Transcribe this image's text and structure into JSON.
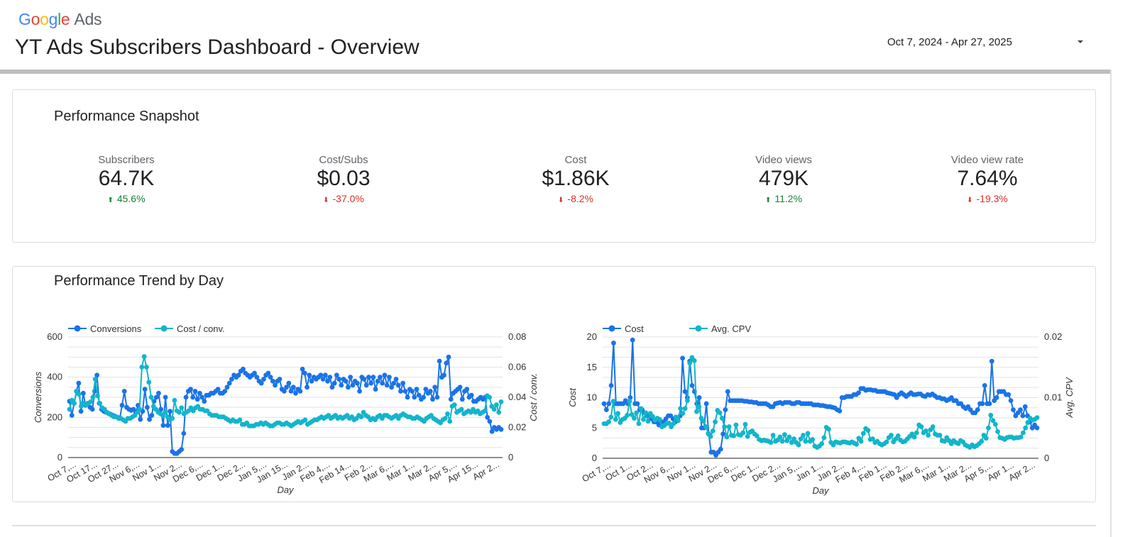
{
  "header": {
    "logo": {
      "google": "Google",
      "ads": "Ads"
    },
    "title": "YT Ads Subscribers Dashboard - Overview",
    "date_range": "Oct 7, 2024 - Apr 27, 2025"
  },
  "snapshot": {
    "title": "Performance Snapshot",
    "kpis": [
      {
        "label": "Subscribers",
        "value": "64.7K",
        "delta": "45.6%",
        "direction": "up"
      },
      {
        "label": "Cost/Subs",
        "value": "$0.03",
        "delta": "-37.0%",
        "direction": "down"
      },
      {
        "label": "Cost",
        "value": "$1.86K",
        "delta": "-8.2%",
        "direction": "down"
      },
      {
        "label": "Video views",
        "value": "479K",
        "delta": "11.2%",
        "direction": "up"
      },
      {
        "label": "Video view rate",
        "value": "7.64%",
        "delta": "-19.3%",
        "direction": "down"
      }
    ]
  },
  "trend": {
    "title": "Performance Trend by Day"
  },
  "colors": {
    "series1": "#1a73e8",
    "series2": "#12b5cb",
    "up": "#188038",
    "down": "#d93025"
  },
  "chart_data": [
    {
      "type": "line",
      "xlabel": "Day",
      "ylabel": "Conversions",
      "y2label": "Cost / conv.",
      "ylim": [
        0,
        600
      ],
      "y2lim": [
        0,
        0.08
      ],
      "yticks": [
        "0",
        "200",
        "400",
        "600"
      ],
      "y2ticks": [
        "0",
        "0.02",
        "0.04",
        "0.06",
        "0.08"
      ],
      "legend_position": "top-left",
      "grid": true,
      "x_tick_labels": [
        "Oct 7,...",
        "Oct 17...",
        "Oct 27...",
        "Nov 6,...",
        "Nov 1...",
        "Nov 2...",
        "Dec 6,...",
        "Dec 1...",
        "Dec 2...",
        "Jan 5,...",
        "Jan 15...",
        "Jan 2...",
        "Feb 4,...",
        "Feb 14...",
        "Feb 2...",
        "Mar 6,...",
        "Mar 1...",
        "Mar 2...",
        "Apr 5,...",
        "Apr 15...",
        "Apr 2..."
      ],
      "series": [
        {
          "name": "Conversions",
          "axis": "left",
          "values": [
            280,
            210,
            270,
            330,
            370,
            230,
            320,
            260,
            270,
            250,
            240,
            330,
            410,
            270,
            240,
            230,
            225,
            220,
            215,
            210,
            205,
            200,
            195,
            260,
            330,
            250,
            240,
            235,
            240,
            225,
            260,
            190,
            230,
            340,
            250,
            190,
            210,
            280,
            300,
            320,
            240,
            160,
            300,
            160,
            230,
            30,
            20,
            20,
            30,
            40,
            120,
            300,
            330,
            340,
            300,
            330,
            290,
            320,
            300,
            280,
            310,
            310,
            320,
            320,
            330,
            340,
            320,
            320,
            330,
            350,
            370,
            390,
            410,
            400,
            410,
            430,
            440,
            420,
            410,
            400,
            410,
            420,
            400,
            380,
            370,
            390,
            410,
            420,
            400,
            380,
            360,
            380,
            390,
            340,
            330,
            350,
            370,
            330,
            350,
            320,
            340,
            330,
            440,
            420,
            350,
            410,
            380,
            400,
            390,
            400,
            410,
            390,
            410,
            380,
            400,
            350,
            370,
            410,
            390,
            360,
            390,
            380,
            350,
            400,
            360,
            380,
            370,
            330,
            400,
            390,
            360,
            400,
            370,
            400,
            340,
            380,
            400,
            370,
            410,
            360,
            400,
            350,
            370,
            390,
            360,
            330,
            370,
            330,
            300,
            340,
            330,
            300,
            340,
            310,
            290,
            300,
            340,
            320,
            330,
            290,
            350,
            300,
            480,
            400,
            410,
            470,
            500,
            290,
            320,
            330,
            340,
            350,
            290,
            330,
            340,
            300,
            310,
            280,
            280,
            290,
            300,
            290,
            300,
            200,
            180,
            130,
            150,
            140,
            150,
            140
          ]
        },
        {
          "name": "Cost / conv.",
          "axis": "right",
          "values": [
            0.032,
            0.038,
            0.036,
            0.044,
            0.042,
            0.034,
            0.036,
            0.035,
            0.036,
            0.037,
            0.04,
            0.052,
            0.041,
            0.036,
            0.033,
            0.032,
            0.03,
            0.029,
            0.028,
            0.027,
            0.027,
            0.026,
            0.026,
            0.025,
            0.024,
            0.026,
            0.026,
            0.027,
            0.028,
            0.03,
            0.032,
            0.06,
            0.067,
            0.06,
            0.05,
            0.04,
            0.034,
            0.032,
            0.03,
            0.029,
            0.028,
            0.03,
            0.027,
            0.025,
            0.026,
            0.038,
            0.031,
            0.03,
            0.033,
            0.029,
            0.03,
            0.031,
            0.033,
            0.031,
            0.033,
            0.034,
            0.032,
            0.032,
            0.031,
            0.031,
            0.029,
            0.028,
            0.028,
            0.028,
            0.027,
            0.027,
            0.027,
            0.026,
            0.025,
            0.024,
            0.025,
            0.024,
            0.024,
            0.025,
            0.022,
            0.022,
            0.023,
            0.021,
            0.021,
            0.021,
            0.022,
            0.022,
            0.023,
            0.022,
            0.023,
            0.022,
            0.021,
            0.021,
            0.022,
            0.023,
            0.023,
            0.022,
            0.022,
            0.023,
            0.022,
            0.021,
            0.022,
            0.023,
            0.024,
            0.023,
            0.024,
            0.025,
            0.022,
            0.023,
            0.024,
            0.025,
            0.025,
            0.026,
            0.027,
            0.026,
            0.027,
            0.028,
            0.026,
            0.027,
            0.028,
            0.026,
            0.027,
            0.026,
            0.027,
            0.028,
            0.026,
            0.027,
            0.025,
            0.026,
            0.028,
            0.027,
            0.03,
            0.028,
            0.027,
            0.025,
            0.026,
            0.025,
            0.027,
            0.028,
            0.026,
            0.028,
            0.028,
            0.027,
            0.026,
            0.027,
            0.028,
            0.026,
            0.028,
            0.029,
            0.028,
            0.027,
            0.027,
            0.026,
            0.026,
            0.027,
            0.026,
            0.025,
            0.024,
            0.026,
            0.027,
            0.028,
            0.026,
            0.025,
            0.024,
            0.023,
            0.025,
            0.026,
            0.029,
            0.024,
            0.034,
            0.035,
            0.03,
            0.031,
            0.032,
            0.029,
            0.03,
            0.031,
            0.03,
            0.032,
            0.03,
            0.031,
            0.029,
            0.03,
            0.031,
            0.041,
            0.04,
            0.034,
            0.032,
            0.035,
            0.03,
            0.037
          ]
        }
      ]
    },
    {
      "type": "line",
      "xlabel": "Day",
      "ylabel": "Cost",
      "y2label": "Avg. CPV",
      "ylim": [
        0,
        20
      ],
      "y2lim": [
        0,
        0.02
      ],
      "yticks": [
        "0",
        "5",
        "10",
        "15",
        "20"
      ],
      "y2ticks": [
        "0",
        "0.01",
        "0.02"
      ],
      "legend_position": "top-left",
      "grid": true,
      "x_tick_labels": [
        "Oct 7,...",
        "Oct 1...",
        "Oct 2...",
        "Nov 6,...",
        "Nov 1...",
        "Nov 2...",
        "Dec 6,...",
        "Dec 1...",
        "Dec 2...",
        "Jan 5,...",
        "Jan 1...",
        "Jan 2...",
        "Feb 4,...",
        "Feb 1...",
        "Feb 2...",
        "Mar 6,...",
        "Mar 1...",
        "Mar 2...",
        "Apr 5,...",
        "Apr 1...",
        "Apr 2..."
      ],
      "series": [
        {
          "name": "Cost",
          "axis": "left",
          "values": [
            9,
            8,
            9,
            12,
            19,
            9,
            9,
            9,
            9,
            9.5,
            9,
            10,
            19.5,
            9,
            9,
            8,
            8,
            7.5,
            7,
            7,
            6.5,
            6,
            6,
            5.5,
            6,
            6,
            6.5,
            7,
            7,
            6.5,
            6,
            6.5,
            7,
            16.5,
            11,
            10,
            16,
            12,
            11,
            9,
            10,
            5,
            5,
            9,
            4,
            1,
            1,
            0.5,
            1,
            1.5,
            4,
            8,
            11,
            9.5,
            9.5,
            9.5,
            9.5,
            9.5,
            9.5,
            9.4,
            9.4,
            9.3,
            9.3,
            9.2,
            9.2,
            9,
            9,
            9,
            9,
            8.8,
            8.5,
            8.5,
            9,
            9.1,
            9.2,
            9,
            9.2,
            9.2,
            9.2,
            9,
            9,
            9.2,
            9.2,
            9,
            9,
            9,
            9,
            9,
            8.8,
            8.8,
            8.8,
            8.7,
            8.7,
            8.6,
            8.5,
            8.5,
            8.4,
            8.3,
            8,
            7.8,
            10,
            10,
            10.2,
            10.2,
            10.2,
            10.5,
            10.5,
            10.8,
            11.5,
            11.5,
            11.2,
            11.3,
            11.3,
            11.2,
            11.2,
            11,
            11,
            11,
            11,
            10.8,
            10.7,
            10.6,
            10.5,
            10,
            10.5,
            10.8,
            10.5,
            10.2,
            10.5,
            10.8,
            10.5,
            10.5,
            10.6,
            10.6,
            10.3,
            10.2,
            10.5,
            10.4,
            10.6,
            10.3,
            10,
            10,
            9.8,
            9.8,
            9.5,
            9.7,
            10,
            9.5,
            9.5,
            9,
            9,
            8.5,
            8.2,
            8.5,
            8,
            7.5,
            7.5,
            8,
            9,
            9,
            12,
            9,
            9,
            16,
            9.5,
            10,
            11,
            11,
            11,
            10.5,
            10.5,
            9.5,
            8,
            7,
            7.5,
            8,
            7,
            8.5,
            7,
            6,
            5,
            5.5,
            5
          ]
        },
        {
          "name": "Avg. CPV",
          "axis": "right",
          "values": [
            0.0057,
            0.0057,
            0.006,
            0.0068,
            0.0094,
            0.0064,
            0.0074,
            0.0059,
            0.0064,
            0.0066,
            0.0071,
            0.0094,
            0.0072,
            0.0066,
            0.0075,
            0.0057,
            0.0082,
            0.0064,
            0.0075,
            0.0061,
            0.0074,
            0.0069,
            0.0063,
            0.0066,
            0.0064,
            0.0052,
            0.0054,
            0.0057,
            0.0058,
            0.0052,
            0.0057,
            0.0068,
            0.0062,
            0.0082,
            0.0074,
            0.0082,
            0.0095,
            0.0157,
            0.0166,
            0.0161,
            0.0077,
            0.0085,
            0.0066,
            0.0061,
            0.0052,
            0.0041,
            0.0036,
            0.0045,
            0.006,
            0.0079,
            0.0075,
            0.0066,
            0.0052,
            0.0035,
            0.0052,
            0.0038,
            0.0037,
            0.0055,
            0.0039,
            0.0038,
            0.0042,
            0.0056,
            0.0036,
            0.0043,
            0.0045,
            0.004,
            0.0037,
            0.0031,
            0.0029,
            0.003,
            0.0029,
            0.0028,
            0.0026,
            0.0038,
            0.0028,
            0.003,
            0.0035,
            0.0028,
            0.0039,
            0.0029,
            0.0035,
            0.0026,
            0.0032,
            0.0026,
            0.0022,
            0.0032,
            0.0038,
            0.0028,
            0.0041,
            0.0028,
            0.0031,
            0.002,
            0.0018,
            0.002,
            0.0024,
            0.0034,
            0.0051,
            0.0048,
            0.0026,
            0.0022,
            0.0027,
            0.0026,
            0.0025,
            0.0027,
            0.0027,
            0.0026,
            0.0025,
            0.0027,
            0.0025,
            0.0023,
            0.0033,
            0.0028,
            0.0041,
            0.0049,
            0.0046,
            0.0031,
            0.0032,
            0.0026,
            0.0028,
            0.0024,
            0.0022,
            0.0024,
            0.0027,
            0.0034,
            0.0038,
            0.0027,
            0.0032,
            0.0037,
            0.003,
            0.0027,
            0.0028,
            0.0032,
            0.0036,
            0.004,
            0.0035,
            0.0042,
            0.0055,
            0.0052,
            0.0042,
            0.0045,
            0.0038,
            0.0047,
            0.0052,
            0.004,
            0.0038,
            0.0038,
            0.0029,
            0.0028,
            0.0034,
            0.0029,
            0.0024,
            0.0029,
            0.0026,
            0.0024,
            0.0029,
            0.0027,
            0.0022,
            0.002,
            0.0018,
            0.0022,
            0.0019,
            0.0021,
            0.0024,
            0.0028,
            0.0038,
            0.0033,
            0.005,
            0.0071,
            0.0062,
            0.0056,
            0.0044,
            0.0034,
            0.0033,
            0.0031,
            0.0034,
            0.0035,
            0.0035,
            0.0033,
            0.0034,
            0.0034,
            0.0035,
            0.0042,
            0.005,
            0.0059,
            0.0066,
            0.0063,
            0.0064,
            0.0067
          ]
        }
      ]
    }
  ]
}
